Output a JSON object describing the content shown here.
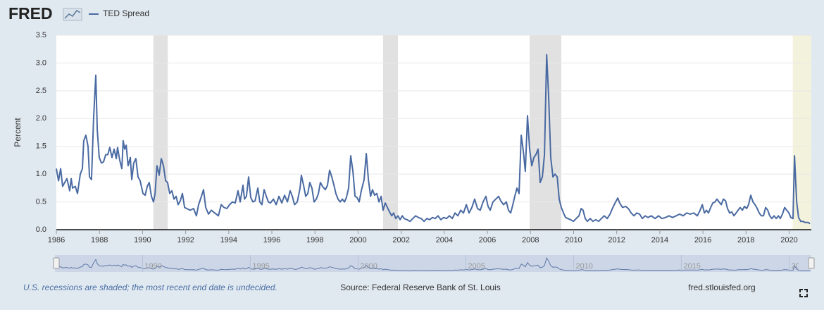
{
  "chart_data": {
    "type": "line",
    "logo": "FRED",
    "ylabel": "Percent",
    "xlim": [
      1986,
      2021.03
    ],
    "xticks": [
      1986,
      1988,
      1990,
      1992,
      1994,
      1996,
      1998,
      2000,
      2002,
      2004,
      2006,
      2008,
      2010,
      2012,
      2014,
      2016,
      2018,
      2020
    ],
    "ylim": [
      0,
      3.5
    ],
    "yticks": [
      {
        "value": 0,
        "label": "0.0"
      },
      0.5,
      {
        "value": 1,
        "label": "1.0"
      },
      1.5,
      {
        "value": 2,
        "label": "2.0"
      },
      2.5,
      {
        "value": 3,
        "label": "3.0"
      },
      3.5
    ],
    "grid": true,
    "recession_color": "#e1e1e1",
    "recessions": [
      {
        "start": 1990.5,
        "end": 1991.17
      },
      {
        "start": 2001.16,
        "end": 2001.85
      },
      {
        "start": 2007.96,
        "end": 2009.43
      }
    ],
    "undecided_recession": {
      "start": 2020.17,
      "end": 2021.03,
      "color": "#f3f2dc"
    },
    "navigator_ticks": [
      1990,
      1995,
      2000,
      2005,
      2010,
      2015,
      2020
    ],
    "x": [
      1986.0,
      1986.1,
      1986.2,
      1986.29,
      1986.49,
      1986.62,
      1986.69,
      1986.75,
      1986.88,
      1986.98,
      1987.11,
      1987.21,
      1987.27,
      1987.37,
      1987.47,
      1987.54,
      1987.63,
      1987.73,
      1987.83,
      1987.9,
      1987.99,
      1988.09,
      1988.19,
      1988.29,
      1988.39,
      1988.48,
      1988.58,
      1988.68,
      1988.78,
      1988.84,
      1988.94,
      1989.04,
      1989.1,
      1989.17,
      1989.24,
      1989.33,
      1989.43,
      1989.5,
      1989.59,
      1989.69,
      1989.79,
      1989.89,
      1990.02,
      1990.12,
      1990.22,
      1990.31,
      1990.41,
      1990.51,
      1990.58,
      1990.67,
      1990.77,
      1990.87,
      1990.97,
      1991.07,
      1991.16,
      1991.26,
      1991.36,
      1991.46,
      1991.56,
      1991.65,
      1991.75,
      1991.85,
      1991.95,
      1992.05,
      1992.21,
      1992.37,
      1992.5,
      1992.6,
      1992.73,
      1992.83,
      1992.93,
      1993.06,
      1993.19,
      1993.35,
      1993.52,
      1993.65,
      1993.78,
      1993.91,
      1994.04,
      1994.17,
      1994.3,
      1994.43,
      1994.53,
      1994.66,
      1994.73,
      1994.82,
      1994.92,
      1995.02,
      1995.12,
      1995.22,
      1995.35,
      1995.44,
      1995.54,
      1995.64,
      1995.74,
      1995.84,
      1995.93,
      1996.07,
      1996.2,
      1996.33,
      1996.46,
      1996.59,
      1996.72,
      1996.85,
      1996.95,
      1997.05,
      1997.18,
      1997.31,
      1997.37,
      1997.47,
      1997.57,
      1997.67,
      1997.76,
      1997.86,
      1997.96,
      1998.06,
      1998.16,
      1998.25,
      1998.35,
      1998.48,
      1998.58,
      1998.68,
      1998.78,
      1998.88,
      1998.97,
      1999.07,
      1999.17,
      1999.27,
      1999.37,
      1999.46,
      1999.56,
      1999.66,
      1999.76,
      1999.86,
      1999.95,
      2000.05,
      2000.15,
      2000.28,
      2000.38,
      2000.48,
      2000.58,
      2000.67,
      2000.77,
      2000.87,
      2000.97,
      2001.07,
      2001.16,
      2001.26,
      2001.36,
      2001.46,
      2001.56,
      2001.65,
      2001.75,
      2001.85,
      2001.95,
      2002.05,
      2002.14,
      2002.27,
      2002.41,
      2002.54,
      2002.67,
      2002.8,
      2002.93,
      2003.06,
      2003.19,
      2003.32,
      2003.45,
      2003.58,
      2003.71,
      2003.84,
      2003.97,
      2004.1,
      2004.24,
      2004.37,
      2004.5,
      2004.63,
      2004.76,
      2004.89,
      2005.02,
      2005.15,
      2005.28,
      2005.41,
      2005.54,
      2005.67,
      2005.8,
      2005.93,
      2006.03,
      2006.13,
      2006.26,
      2006.39,
      2006.52,
      2006.62,
      2006.75,
      2006.88,
      2006.98,
      2007.08,
      2007.18,
      2007.27,
      2007.37,
      2007.47,
      2007.57,
      2007.67,
      2007.76,
      2007.86,
      2007.96,
      2008.06,
      2008.16,
      2008.25,
      2008.35,
      2008.45,
      2008.55,
      2008.65,
      2008.75,
      2008.84,
      2008.94,
      2009.04,
      2009.14,
      2009.24,
      2009.33,
      2009.43,
      2009.53,
      2009.63,
      2009.73,
      2009.86,
      2009.99,
      2010.12,
      2010.25,
      2010.35,
      2010.44,
      2010.54,
      2010.64,
      2010.77,
      2010.9,
      2011.03,
      2011.16,
      2011.29,
      2011.42,
      2011.56,
      2011.69,
      2011.82,
      2011.95,
      2012.05,
      2012.14,
      2012.27,
      2012.41,
      2012.54,
      2012.67,
      2012.8,
      2012.93,
      2013.06,
      2013.19,
      2013.32,
      2013.45,
      2013.61,
      2013.78,
      2013.94,
      2014.1,
      2014.27,
      2014.43,
      2014.59,
      2014.76,
      2014.92,
      2015.08,
      2015.25,
      2015.41,
      2015.58,
      2015.74,
      2015.87,
      2015.97,
      2016.07,
      2016.16,
      2016.26,
      2016.36,
      2016.46,
      2016.56,
      2016.65,
      2016.75,
      2016.85,
      2016.95,
      2017.05,
      2017.14,
      2017.24,
      2017.34,
      2017.44,
      2017.54,
      2017.63,
      2017.73,
      2017.83,
      2017.93,
      2018.03,
      2018.12,
      2018.22,
      2018.32,
      2018.42,
      2018.52,
      2018.61,
      2018.71,
      2018.81,
      2018.91,
      2019.01,
      2019.1,
      2019.2,
      2019.3,
      2019.4,
      2019.5,
      2019.59,
      2019.69,
      2019.79,
      2019.89,
      2019.99,
      2020.08,
      2020.18,
      2020.25,
      2020.35,
      2020.44,
      2020.54,
      2020.64,
      2020.74,
      2020.87,
      2020.97
    ],
    "series": [
      {
        "name": "TED Spread",
        "color": "#4a6aa2",
        "values": [
          1.1,
          0.88,
          1.1,
          0.78,
          0.92,
          0.7,
          0.92,
          0.75,
          0.78,
          0.65,
          1.0,
          1.1,
          1.6,
          1.7,
          1.5,
          0.95,
          0.9,
          2.0,
          2.78,
          1.8,
          1.3,
          1.2,
          1.22,
          1.35,
          1.35,
          1.48,
          1.3,
          1.45,
          1.28,
          1.48,
          1.25,
          1.1,
          1.6,
          1.45,
          1.52,
          1.15,
          1.3,
          0.9,
          1.2,
          1.28,
          0.95,
          0.88,
          0.65,
          0.62,
          0.78,
          0.85,
          0.6,
          0.5,
          0.65,
          1.15,
          0.98,
          1.28,
          1.15,
          0.88,
          0.85,
          0.65,
          0.7,
          0.55,
          0.6,
          0.45,
          0.52,
          0.65,
          0.4,
          0.38,
          0.35,
          0.38,
          0.25,
          0.45,
          0.6,
          0.72,
          0.4,
          0.28,
          0.35,
          0.3,
          0.25,
          0.45,
          0.4,
          0.38,
          0.45,
          0.5,
          0.48,
          0.7,
          0.5,
          0.8,
          0.55,
          0.6,
          0.95,
          0.58,
          0.5,
          0.52,
          0.75,
          0.5,
          0.45,
          0.72,
          0.6,
          0.5,
          0.48,
          0.55,
          0.45,
          0.6,
          0.48,
          0.62,
          0.5,
          0.7,
          0.6,
          0.45,
          0.5,
          0.75,
          0.98,
          0.8,
          0.6,
          0.65,
          0.85,
          0.75,
          0.5,
          0.55,
          0.65,
          0.85,
          0.78,
          0.72,
          0.8,
          1.07,
          0.95,
          0.8,
          0.65,
          0.55,
          0.5,
          0.55,
          0.5,
          0.58,
          0.75,
          1.33,
          1.05,
          0.6,
          0.58,
          0.5,
          0.7,
          0.9,
          1.37,
          0.9,
          0.6,
          0.72,
          0.62,
          0.65,
          0.5,
          0.6,
          0.35,
          0.48,
          0.4,
          0.32,
          0.25,
          0.3,
          0.2,
          0.25,
          0.18,
          0.25,
          0.2,
          0.18,
          0.15,
          0.2,
          0.25,
          0.22,
          0.2,
          0.15,
          0.2,
          0.18,
          0.22,
          0.2,
          0.25,
          0.18,
          0.22,
          0.2,
          0.25,
          0.2,
          0.3,
          0.25,
          0.35,
          0.3,
          0.45,
          0.3,
          0.4,
          0.55,
          0.38,
          0.35,
          0.5,
          0.6,
          0.42,
          0.35,
          0.5,
          0.55,
          0.6,
          0.52,
          0.45,
          0.5,
          0.35,
          0.3,
          0.45,
          0.6,
          0.75,
          0.65,
          1.7,
          1.4,
          1.05,
          2.05,
          1.45,
          1.15,
          1.3,
          1.35,
          1.45,
          0.85,
          0.95,
          1.35,
          3.15,
          2.4,
          1.3,
          0.95,
          1.0,
          0.95,
          0.55,
          0.4,
          0.3,
          0.22,
          0.2,
          0.18,
          0.15,
          0.2,
          0.25,
          0.38,
          0.35,
          0.2,
          0.15,
          0.2,
          0.15,
          0.18,
          0.15,
          0.2,
          0.25,
          0.2,
          0.28,
          0.4,
          0.5,
          0.57,
          0.48,
          0.4,
          0.42,
          0.38,
          0.3,
          0.25,
          0.3,
          0.28,
          0.2,
          0.25,
          0.22,
          0.25,
          0.2,
          0.25,
          0.2,
          0.22,
          0.25,
          0.22,
          0.25,
          0.28,
          0.25,
          0.3,
          0.28,
          0.3,
          0.25,
          0.35,
          0.45,
          0.3,
          0.35,
          0.3,
          0.4,
          0.48,
          0.5,
          0.55,
          0.5,
          0.45,
          0.55,
          0.52,
          0.38,
          0.3,
          0.32,
          0.25,
          0.3,
          0.35,
          0.4,
          0.35,
          0.42,
          0.38,
          0.45,
          0.62,
          0.5,
          0.45,
          0.38,
          0.3,
          0.25,
          0.25,
          0.4,
          0.35,
          0.25,
          0.2,
          0.25,
          0.2,
          0.25,
          0.2,
          0.28,
          0.4,
          0.35,
          0.3,
          0.22,
          0.2,
          1.33,
          0.5,
          0.22,
          0.15,
          0.15,
          0.13,
          0.13,
          0.11
        ]
      }
    ],
    "note": "U.S. recessions are shaded; the most recent end date is undecided.",
    "source": "Source: Federal Reserve Bank of St. Louis",
    "url": "fred.stlouisfed.org"
  }
}
